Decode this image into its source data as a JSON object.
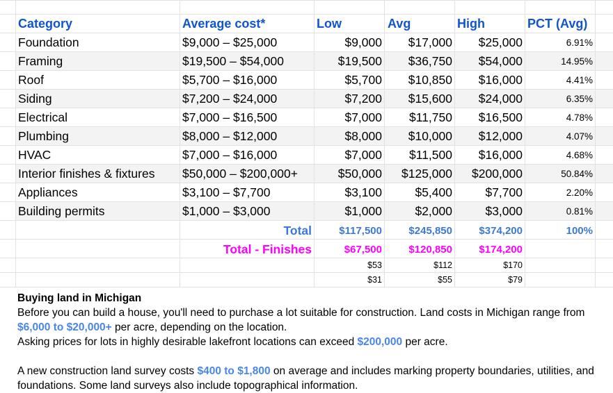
{
  "headers": {
    "category": "Category",
    "avg_cost": "Average cost*",
    "low": "Low",
    "avg": "Avg",
    "high": "High",
    "pct": "PCT (Avg)"
  },
  "rows": [
    {
      "category": "Foundation",
      "range": "$9,000 – $25,000",
      "low": "$9,000",
      "avg": "$17,000",
      "high": "$25,000",
      "pct": "6.91%"
    },
    {
      "category": "Framing",
      "range": "$19,500 – $54,000",
      "low": "$19,500",
      "avg": "$36,750",
      "high": "$54,000",
      "pct": "14.95%"
    },
    {
      "category": "Roof",
      "range": "$5,700 – $16,000",
      "low": "$5,700",
      "avg": "$10,850",
      "high": "$16,000",
      "pct": "4.41%"
    },
    {
      "category": "Siding",
      "range": "$7,200 – $24,000",
      "low": "$7,200",
      "avg": "$15,600",
      "high": "$24,000",
      "pct": "6.35%"
    },
    {
      "category": "Electrical",
      "range": "$7,000 – $16,500",
      "low": "$7,000",
      "avg": "$11,750",
      "high": "$16,500",
      "pct": "4.78%"
    },
    {
      "category": "Plumbing",
      "range": "$8,000 – $12,000",
      "low": "$8,000",
      "avg": "$10,000",
      "high": "$12,000",
      "pct": "4.07%"
    },
    {
      "category": "HVAC",
      "range": "$7,000 – $16,000",
      "low": "$7,000",
      "avg": "$11,500",
      "high": "$16,000",
      "pct": "4.68%"
    },
    {
      "category": "Interior finishes & fixtures",
      "range": "$50,000 – $200,000+",
      "low": "$50,000",
      "avg": "$125,000",
      "high": "$200,000",
      "pct": "50.84%"
    },
    {
      "category": "Appliances",
      "range": "$3,100 – $7,700",
      "low": "$3,100",
      "avg": "$5,400",
      "high": "$7,700",
      "pct": "2.20%"
    },
    {
      "category": "Building permits",
      "range": "$1,000 – $3,000",
      "low": "$1,000",
      "avg": "$2,000",
      "high": "$3,000",
      "pct": "0.81%"
    }
  ],
  "total": {
    "label": "Total",
    "low": "$117,500",
    "avg": "$245,850",
    "high": "$374,200",
    "pct": "100%"
  },
  "total_finishes": {
    "label": "Total - Finishes",
    "low": "$67,500",
    "avg": "$120,850",
    "high": "$174,200"
  },
  "extra_rows": [
    {
      "low": "$53",
      "avg": "$112",
      "high": "$170"
    },
    {
      "low": "$31",
      "avg": "$55",
      "high": "$79"
    }
  ],
  "note": {
    "title": "Buying land in Michigan",
    "p1_before": "Before you can build a house, you'll need to purchase a lot suitable for construction. Land costs in Michigan range from ",
    "p1_hi": "$6,000 to $20,000+",
    "p1_after": " per acre, depending on the location.",
    "p2_before": "Asking prices for lots in highly desirable lakefront locations can exceed ",
    "p2_hi": "$200,000",
    "p2_after": " per acre.",
    "p3_before": "A new construction land survey costs ",
    "p3_hi": "$400 to $1,800",
    "p3_after": " on average and includes marking property boundaries, utilities, and foundations. Some land surveys also include topographical information."
  },
  "colors": {
    "header": "#1155cc",
    "blue_total": "#3d78d8",
    "magenta": "#ff00ff",
    "grid": "#e2e2e2",
    "band": "#f3f3f3"
  }
}
